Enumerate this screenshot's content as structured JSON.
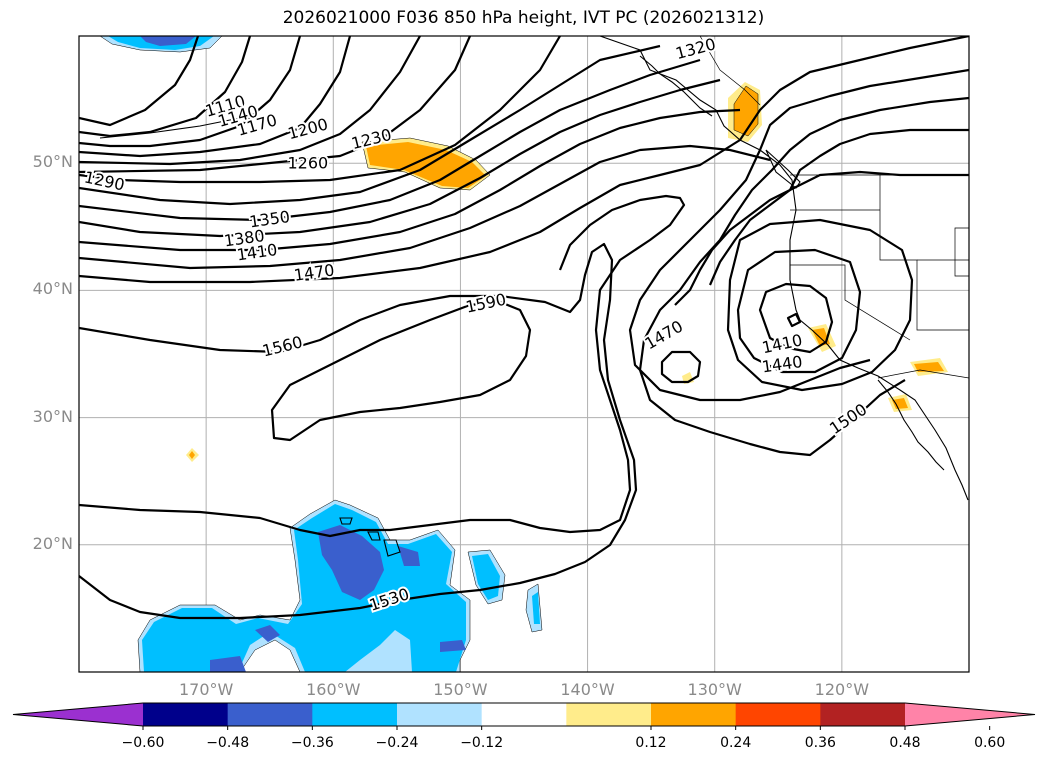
{
  "title": "2026021000 F036 850 hPa height, IVT PC (2026021312)",
  "map": {
    "projection": "PlateCarree",
    "extent": {
      "lon_min": -180,
      "lon_max": -110,
      "lat_min": 10,
      "lat_max": 60
    },
    "lon_ticks": [
      {
        "value": -170,
        "label": "170°W"
      },
      {
        "value": -160,
        "label": "160°W"
      },
      {
        "value": -150,
        "label": "150°W"
      },
      {
        "value": -140,
        "label": "140°W"
      },
      {
        "value": -130,
        "label": "130°W"
      },
      {
        "value": -120,
        "label": "120°W"
      }
    ],
    "lat_ticks": [
      {
        "value": 50,
        "label": "50°N"
      },
      {
        "value": 40,
        "label": "40°N"
      },
      {
        "value": 30,
        "label": "30°N"
      },
      {
        "value": 20,
        "label": "20°N"
      }
    ],
    "gridlines": true
  },
  "contour_labels": [
    {
      "text": "1110",
      "lon": -168.5,
      "lat": 54.5,
      "angle": -16
    },
    {
      "text": "1140",
      "lon": -167.5,
      "lat": 53.7,
      "angle": -16
    },
    {
      "text": "1170",
      "lon": -166.0,
      "lat": 53.0,
      "angle": -16
    },
    {
      "text": "1200",
      "lon": -162.0,
      "lat": 52.7,
      "angle": -15
    },
    {
      "text": "1230",
      "lon": -157.0,
      "lat": 51.9,
      "angle": -14
    },
    {
      "text": "1260",
      "lon": -162.0,
      "lat": 50.0,
      "angle": 0
    },
    {
      "text": "1290",
      "lon": -178.0,
      "lat": 48.6,
      "angle": 12
    },
    {
      "text": "1320",
      "lon": -131.5,
      "lat": 59.0,
      "angle": -15
    },
    {
      "text": "1350",
      "lon": -165.0,
      "lat": 45.6,
      "angle": -8
    },
    {
      "text": "1380",
      "lon": -167.0,
      "lat": 44.1,
      "angle": -8
    },
    {
      "text": "1410",
      "lon": -166.0,
      "lat": 43.0,
      "angle": -8
    },
    {
      "text": "1470",
      "lon": -161.5,
      "lat": 41.4,
      "angle": -8
    },
    {
      "text": "1590",
      "lon": -148.0,
      "lat": 39.0,
      "angle": -12
    },
    {
      "text": "1560",
      "lon": -164.0,
      "lat": 35.6,
      "angle": -14
    },
    {
      "text": "1470",
      "lon": -134.0,
      "lat": 36.5,
      "angle": -30
    },
    {
      "text": "1410",
      "lon": -124.7,
      "lat": 35.8,
      "angle": -12
    },
    {
      "text": "1440",
      "lon": -124.7,
      "lat": 34.2,
      "angle": -8
    },
    {
      "text": "1500",
      "lon": -119.5,
      "lat": 29.9,
      "angle": -34
    },
    {
      "text": "1530",
      "lon": -155.6,
      "lat": 15.7,
      "angle": -18
    }
  ],
  "colorbar": {
    "extend": "both",
    "ticks": [
      "−0.60",
      "−0.48",
      "−0.36",
      "−0.24",
      "−0.12",
      "0.12",
      "0.24",
      "0.36",
      "0.48",
      "0.60"
    ],
    "colors": [
      "#9b30d0",
      "#00008b",
      "#3a5fcd",
      "#00bfff",
      "#b0e2ff",
      "#ffffff",
      "#ffec8b",
      "#ffa500",
      "#ff4500",
      "#b22222",
      "#ff83a8"
    ]
  }
}
